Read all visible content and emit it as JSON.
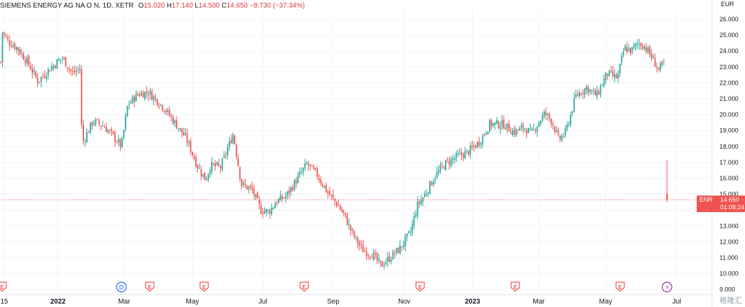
{
  "header": {
    "symbol_line": "SIEMENS ENERGY AG NA O N, 1D, XETR",
    "o_label": "O",
    "o_value": "15.020",
    "h_label": "H",
    "h_value": "17.140",
    "l_label": "L",
    "l_value": "14.500",
    "c_label": "C",
    "c_value": "14.650",
    "change": "−8.730 (−37.34%)"
  },
  "price_axis": {
    "currency": "EUR",
    "ticks": [
      "26.000",
      "25.000",
      "24.000",
      "23.000",
      "22.000",
      "21.000",
      "20.000",
      "19.000",
      "18.000",
      "17.000",
      "16.000",
      "15.000",
      "14.000",
      "13.000",
      "12.000",
      "11.000",
      "10.000",
      "9.000"
    ]
  },
  "price_label": {
    "ticker": "ENR",
    "price": "14.650",
    "countdown": "01:08:24"
  },
  "time_axis": {
    "labels": [
      "15",
      "2022",
      "Mar",
      "May",
      "Jul",
      "Sep",
      "Nov",
      "2023",
      "Mar",
      "May",
      "Jul"
    ]
  },
  "events": [
    {
      "letter": "E",
      "kind": "earnings"
    },
    {
      "letter": "D",
      "kind": "dividend"
    },
    {
      "letter": "E",
      "kind": "earnings"
    },
    {
      "letter": "E",
      "kind": "earnings"
    },
    {
      "letter": "E",
      "kind": "earnings"
    },
    {
      "letter": "E",
      "kind": "earnings"
    },
    {
      "letter": "E",
      "kind": "earnings"
    },
    {
      "letter": "E",
      "kind": "earnings"
    },
    {
      "letter": "⚡",
      "kind": "split"
    }
  ],
  "colors": {
    "up": "#26a69a",
    "down": "#ef5350",
    "last_price_line": "#ef5350",
    "earnings": "#ef5350",
    "dividend": "#2962ff",
    "split": "#9c27b0",
    "axis_text": "#131722",
    "grid": "#f0f3fa"
  },
  "watermark": "格隆汇",
  "chart_data": {
    "type": "candlestick",
    "title": "SIEMENS ENERGY AG NA O N, 1D, XETR",
    "ylabel": "EUR",
    "ylim": [
      9.0,
      26.6
    ],
    "grid": true,
    "last_close": 14.65,
    "series": [
      {
        "name": "ENR",
        "x": [
          "2021-12-15",
          "2022-01-01",
          "2022-03-01",
          "2022-05-01",
          "2022-07-01",
          "2022-09-01",
          "2022-11-01",
          "2023-01-01",
          "2023-03-01",
          "2023-05-01",
          "2023-06-20"
        ],
        "y": [
          25.3,
          23.6,
          20.8,
          19.0,
          14.7,
          15.7,
          13.6,
          17.6,
          19.7,
          24.1,
          22.8
        ]
      }
    ],
    "last_bar": {
      "open": 15.02,
      "high": 17.14,
      "low": 14.5,
      "close": 14.65
    }
  }
}
